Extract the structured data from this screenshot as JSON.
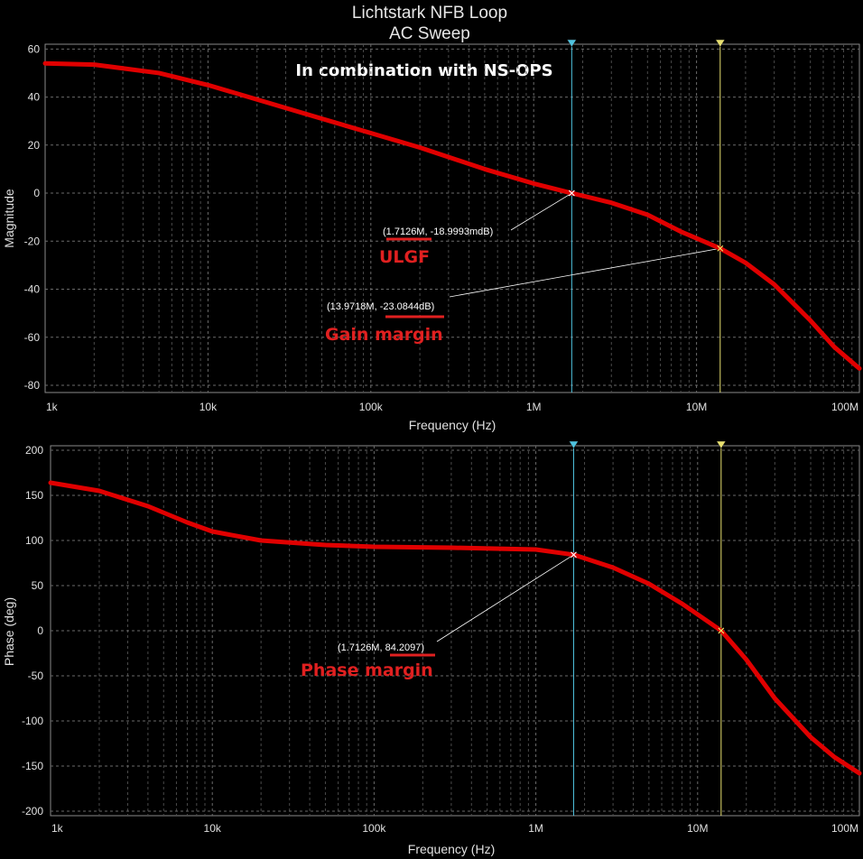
{
  "chart_data": [
    {
      "type": "line",
      "title": "Lichtstark NFB Loop",
      "subtitle": "AC Sweep",
      "note": "In combination with NS-OPS",
      "xlabel": "Frequency (Hz)",
      "ylabel": "Magnitude",
      "x_scale": "log",
      "xlim": [
        1000,
        100000000
      ],
      "ylim": [
        -83,
        62
      ],
      "x_ticks": [
        1000,
        10000,
        100000,
        1000000,
        10000000,
        100000000
      ],
      "x_tick_labels": [
        "1k",
        "10k",
        "100k",
        "1M",
        "10M",
        "100M"
      ],
      "y_ticks": [
        60,
        40,
        20,
        0,
        -20,
        -40,
        -60,
        -80
      ],
      "y_tick_labels": [
        "60",
        "40",
        "20",
        "0",
        "-20",
        "-40",
        "-60",
        "-80"
      ],
      "grid": true,
      "line_color": "#e00000",
      "series": [
        {
          "x": [
            1000,
            2000,
            5000,
            10000,
            20000,
            50000,
            100000,
            200000,
            500000,
            1000000,
            1712600,
            3000000,
            5000000,
            8000000,
            13971800,
            20000000,
            30000000,
            50000000,
            70000000,
            100000000
          ],
          "y": [
            54,
            53.5,
            50,
            45,
            39,
            31,
            25,
            19,
            10,
            4,
            0,
            -4,
            -9,
            -16,
            -23,
            -29,
            -38,
            -53,
            -64,
            -73
          ]
        }
      ],
      "cursors": [
        {
          "x": 1712600,
          "color": "#4fc3e0",
          "marker": "cyan"
        },
        {
          "x": 13971800,
          "color": "#e8e070",
          "marker": "yellow"
        }
      ],
      "annotations": [
        {
          "readout": "(1.7126M, -18.9993mdB)",
          "label": "ULGF"
        },
        {
          "readout": "(13.9718M, -23.0844dB)",
          "label": "Gain margin"
        }
      ]
    },
    {
      "type": "line",
      "xlabel": "Frequency (Hz)",
      "ylabel": "Phase (deg)",
      "x_scale": "log",
      "xlim": [
        1000,
        100000000
      ],
      "ylim": [
        -205,
        205
      ],
      "x_ticks": [
        1000,
        10000,
        100000,
        1000000,
        10000000,
        100000000
      ],
      "x_tick_labels": [
        "1k",
        "10k",
        "100k",
        "1M",
        "10M",
        "100M"
      ],
      "y_ticks": [
        200,
        150,
        100,
        50,
        0,
        -50,
        -100,
        -150,
        -200
      ],
      "y_tick_labels": [
        "200",
        "150",
        "100",
        "50",
        "0",
        "-50",
        "-100",
        "-150",
        "-200"
      ],
      "grid": true,
      "line_color": "#e00000",
      "series": [
        {
          "x": [
            1000,
            2000,
            4000,
            7000,
            10000,
            20000,
            50000,
            100000,
            300000,
            1000000,
            1712600,
            3000000,
            5000000,
            8000000,
            14000000,
            20000000,
            30000000,
            50000000,
            70000000,
            100000000
          ],
          "y": [
            164,
            155,
            138,
            120,
            110,
            100,
            95,
            93,
            92,
            90,
            84.2,
            70,
            52,
            30,
            0,
            -32,
            -75,
            -118,
            -140,
            -158
          ]
        }
      ],
      "cursors": [
        {
          "x": 1712600,
          "color": "#4fc3e0",
          "marker": "cyan"
        },
        {
          "x": 13971800,
          "color": "#e8e070",
          "marker": "yellow"
        }
      ],
      "annotations": [
        {
          "readout": "(1.7126M, 84.2097)",
          "label": "Phase margin"
        }
      ]
    }
  ]
}
